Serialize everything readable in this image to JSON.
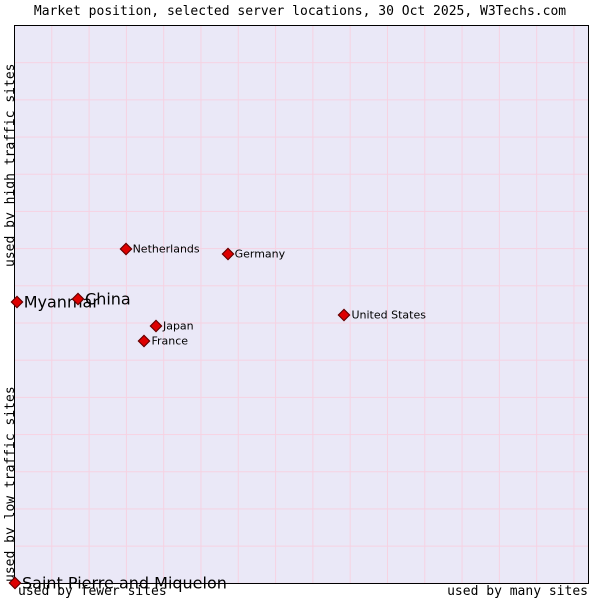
{
  "header": {
    "title": "Market position, selected server locations, 30 Oct 2025, W3Techs.com"
  },
  "chart_data": {
    "type": "scatter",
    "title": "Market position, selected server locations, 30 Oct 2025, W3Techs.com",
    "x_axis": {
      "left_label": "used by fewer sites",
      "right_label": "used by many sites",
      "ticks": "none (qualitative axis)"
    },
    "y_axis": {
      "top_label": "used by high traffic sites",
      "bottom_label": "used by low traffic sites",
      "ticks": "none (qualitative axis)"
    },
    "legend": "none",
    "grid": "on",
    "colors": {
      "marker": "#dd0000",
      "marker_border": "#550000",
      "plot_background": "#eae8f7",
      "grid_line": "#f6d2e2",
      "text": "#000000"
    },
    "points": [
      {
        "label": "Netherlands",
        "x_pct": 19.3,
        "y_pct": 40.0,
        "emphasis": false
      },
      {
        "label": "Germany",
        "x_pct": 37.1,
        "y_pct": 41.0,
        "emphasis": false
      },
      {
        "label": "Myanmar",
        "x_pct": 0.3,
        "y_pct": 49.5,
        "emphasis": true
      },
      {
        "label": "China",
        "x_pct": 11.0,
        "y_pct": 49.1,
        "emphasis": true
      },
      {
        "label": "United States",
        "x_pct": 57.5,
        "y_pct": 51.8,
        "emphasis": false
      },
      {
        "label": "Japan",
        "x_pct": 24.6,
        "y_pct": 53.8,
        "emphasis": false
      },
      {
        "label": "France",
        "x_pct": 22.6,
        "y_pct": 56.6,
        "emphasis": false
      },
      {
        "label": "Saint Pierre and Miquelon",
        "x_pct": 0.0,
        "y_pct": 100.0,
        "emphasis": true
      }
    ]
  }
}
